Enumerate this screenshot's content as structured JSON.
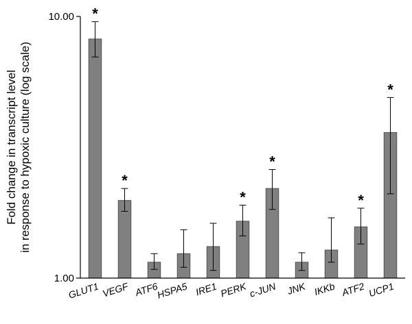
{
  "chart_data": {
    "type": "bar",
    "ylabel": "Fold change in transcript level in response to hypoxic culture (log scale)",
    "ylabel_lines": [
      "Fold change in transcript level",
      "in response to hypoxic culture (log scale)"
    ],
    "y_scale": "log",
    "ylim": [
      1.0,
      10.0
    ],
    "y_ticks": [
      {
        "value": 1.0,
        "label": "1.00"
      },
      {
        "value": 10.0,
        "label": "10.00"
      }
    ],
    "categories": [
      "GLUT1",
      "VEGF",
      "ATF6",
      "HSPA5",
      "IRE1",
      "PERK",
      "c-JUN",
      "JNK",
      "IKKb",
      "ATF2",
      "UCP1"
    ],
    "values": [
      8.2,
      1.98,
      1.15,
      1.24,
      1.32,
      1.65,
      2.2,
      1.15,
      1.28,
      1.57,
      3.6
    ],
    "error_high": [
      9.55,
      2.2,
      1.24,
      1.53,
      1.62,
      1.9,
      2.6,
      1.25,
      1.7,
      1.85,
      4.9
    ],
    "error_low": [
      7.0,
      1.8,
      1.08,
      1.1,
      1.07,
      1.45,
      1.83,
      1.07,
      1.15,
      1.35,
      2.1
    ],
    "significance_marker": "*",
    "significant": [
      true,
      true,
      false,
      false,
      false,
      true,
      true,
      false,
      false,
      true,
      true
    ],
    "grid": false,
    "bar_color": "#808080",
    "bar_edge_color": "#505050"
  }
}
